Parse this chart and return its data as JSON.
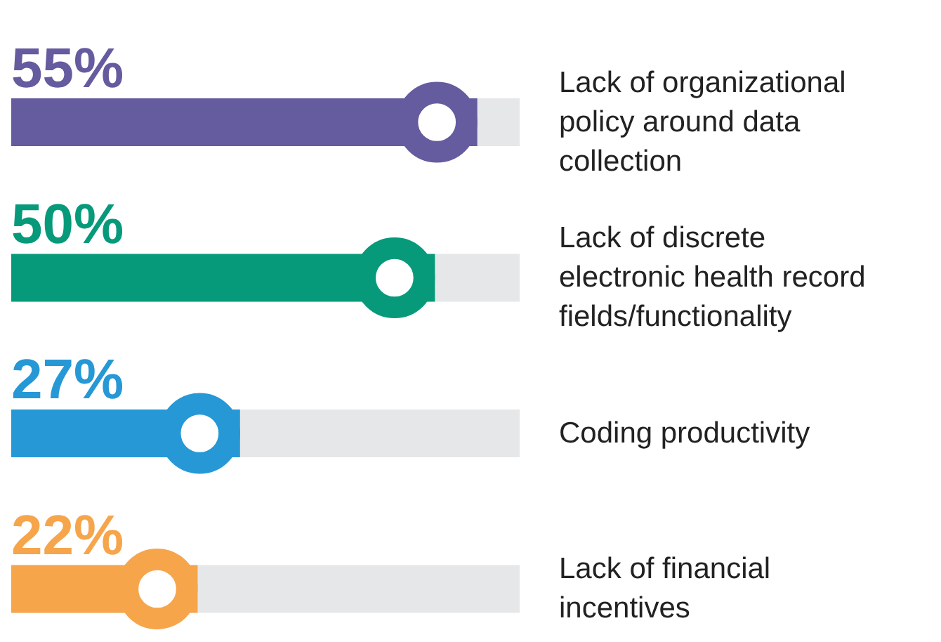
{
  "chart_data": {
    "type": "bar",
    "orientation": "horizontal",
    "categories": [
      "Lack of organizational policy around data collection",
      "Lack of discrete electronic health record fields/functionality",
      "Coding productivity",
      "Lack of financial incentives"
    ],
    "values": [
      55,
      50,
      27,
      22
    ],
    "colors": [
      "#655b9f",
      "#079a7a",
      "#2698d6",
      "#f6a54b"
    ],
    "value_labels": [
      "55%",
      "50%",
      "27%",
      "22%"
    ],
    "xlim": [
      0,
      60
    ],
    "tick_labels": "y"
  }
}
